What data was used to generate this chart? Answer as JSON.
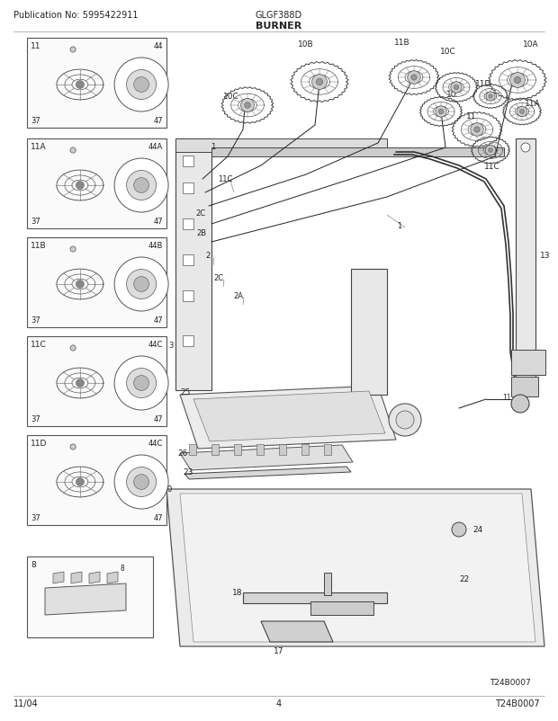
{
  "title_left": "Publication No: 5995422911",
  "title_center": "GLGF388D",
  "subtitle": "BURNER",
  "footer_left": "11/04",
  "footer_center": "4",
  "footer_right": "T24B0007",
  "bg_color": "#ffffff",
  "text_color": "#222222",
  "page_width": 6.2,
  "page_height": 8.03,
  "dpi": 100
}
